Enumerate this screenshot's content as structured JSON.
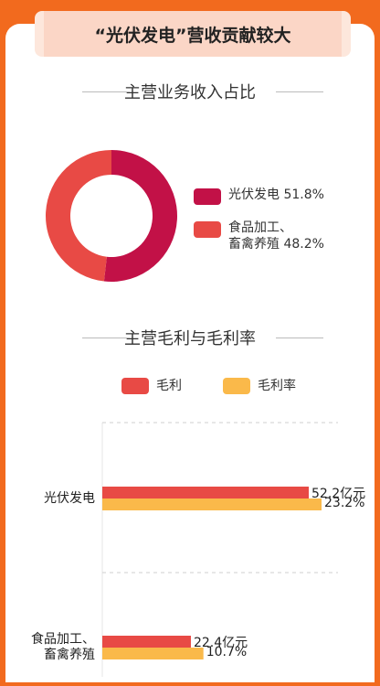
{
  "banner": {
    "title": "“光伏发电”营收贡献较大"
  },
  "section1": {
    "title": "主营业务收入占比"
  },
  "section2": {
    "title": "主营毛利与毛利率"
  },
  "colors": {
    "red": "#e84a45",
    "crimson": "#c21147",
    "orange_red": "#e84a45",
    "yellow": "#fab94a",
    "bg": "#f26a1e"
  },
  "chart_data": [
    {
      "type": "pie",
      "title": "主营业务收入占比",
      "donut": true,
      "slices": [
        {
          "name": "光伏发电",
          "value": 51.8,
          "label": "51.8%",
          "color": "#c21147"
        },
        {
          "name": "食品加工、畜禽养殖",
          "value": 48.2,
          "label": "48.2%",
          "color": "#e84a45"
        }
      ],
      "legend_placement": "right"
    },
    {
      "type": "bar",
      "orientation": "horizontal",
      "title": "主营毛利与毛利率",
      "categories": [
        "光伏发电",
        "食品加工、畜禽养殖"
      ],
      "category_lines": [
        [
          "光伏发电"
        ],
        [
          "食品加工、",
          "畜禽养殖"
        ]
      ],
      "series": [
        {
          "name": "毛利",
          "values": [
            52.2,
            22.4
          ],
          "labels": [
            "52.2亿元",
            "22.4亿元"
          ],
          "color": "#e84a45"
        },
        {
          "name": "毛利率",
          "values": [
            23.2,
            10.7
          ],
          "labels": [
            "23.2%",
            "10.7%"
          ],
          "color": "#fab94a"
        }
      ],
      "legend_placement": "top"
    }
  ]
}
